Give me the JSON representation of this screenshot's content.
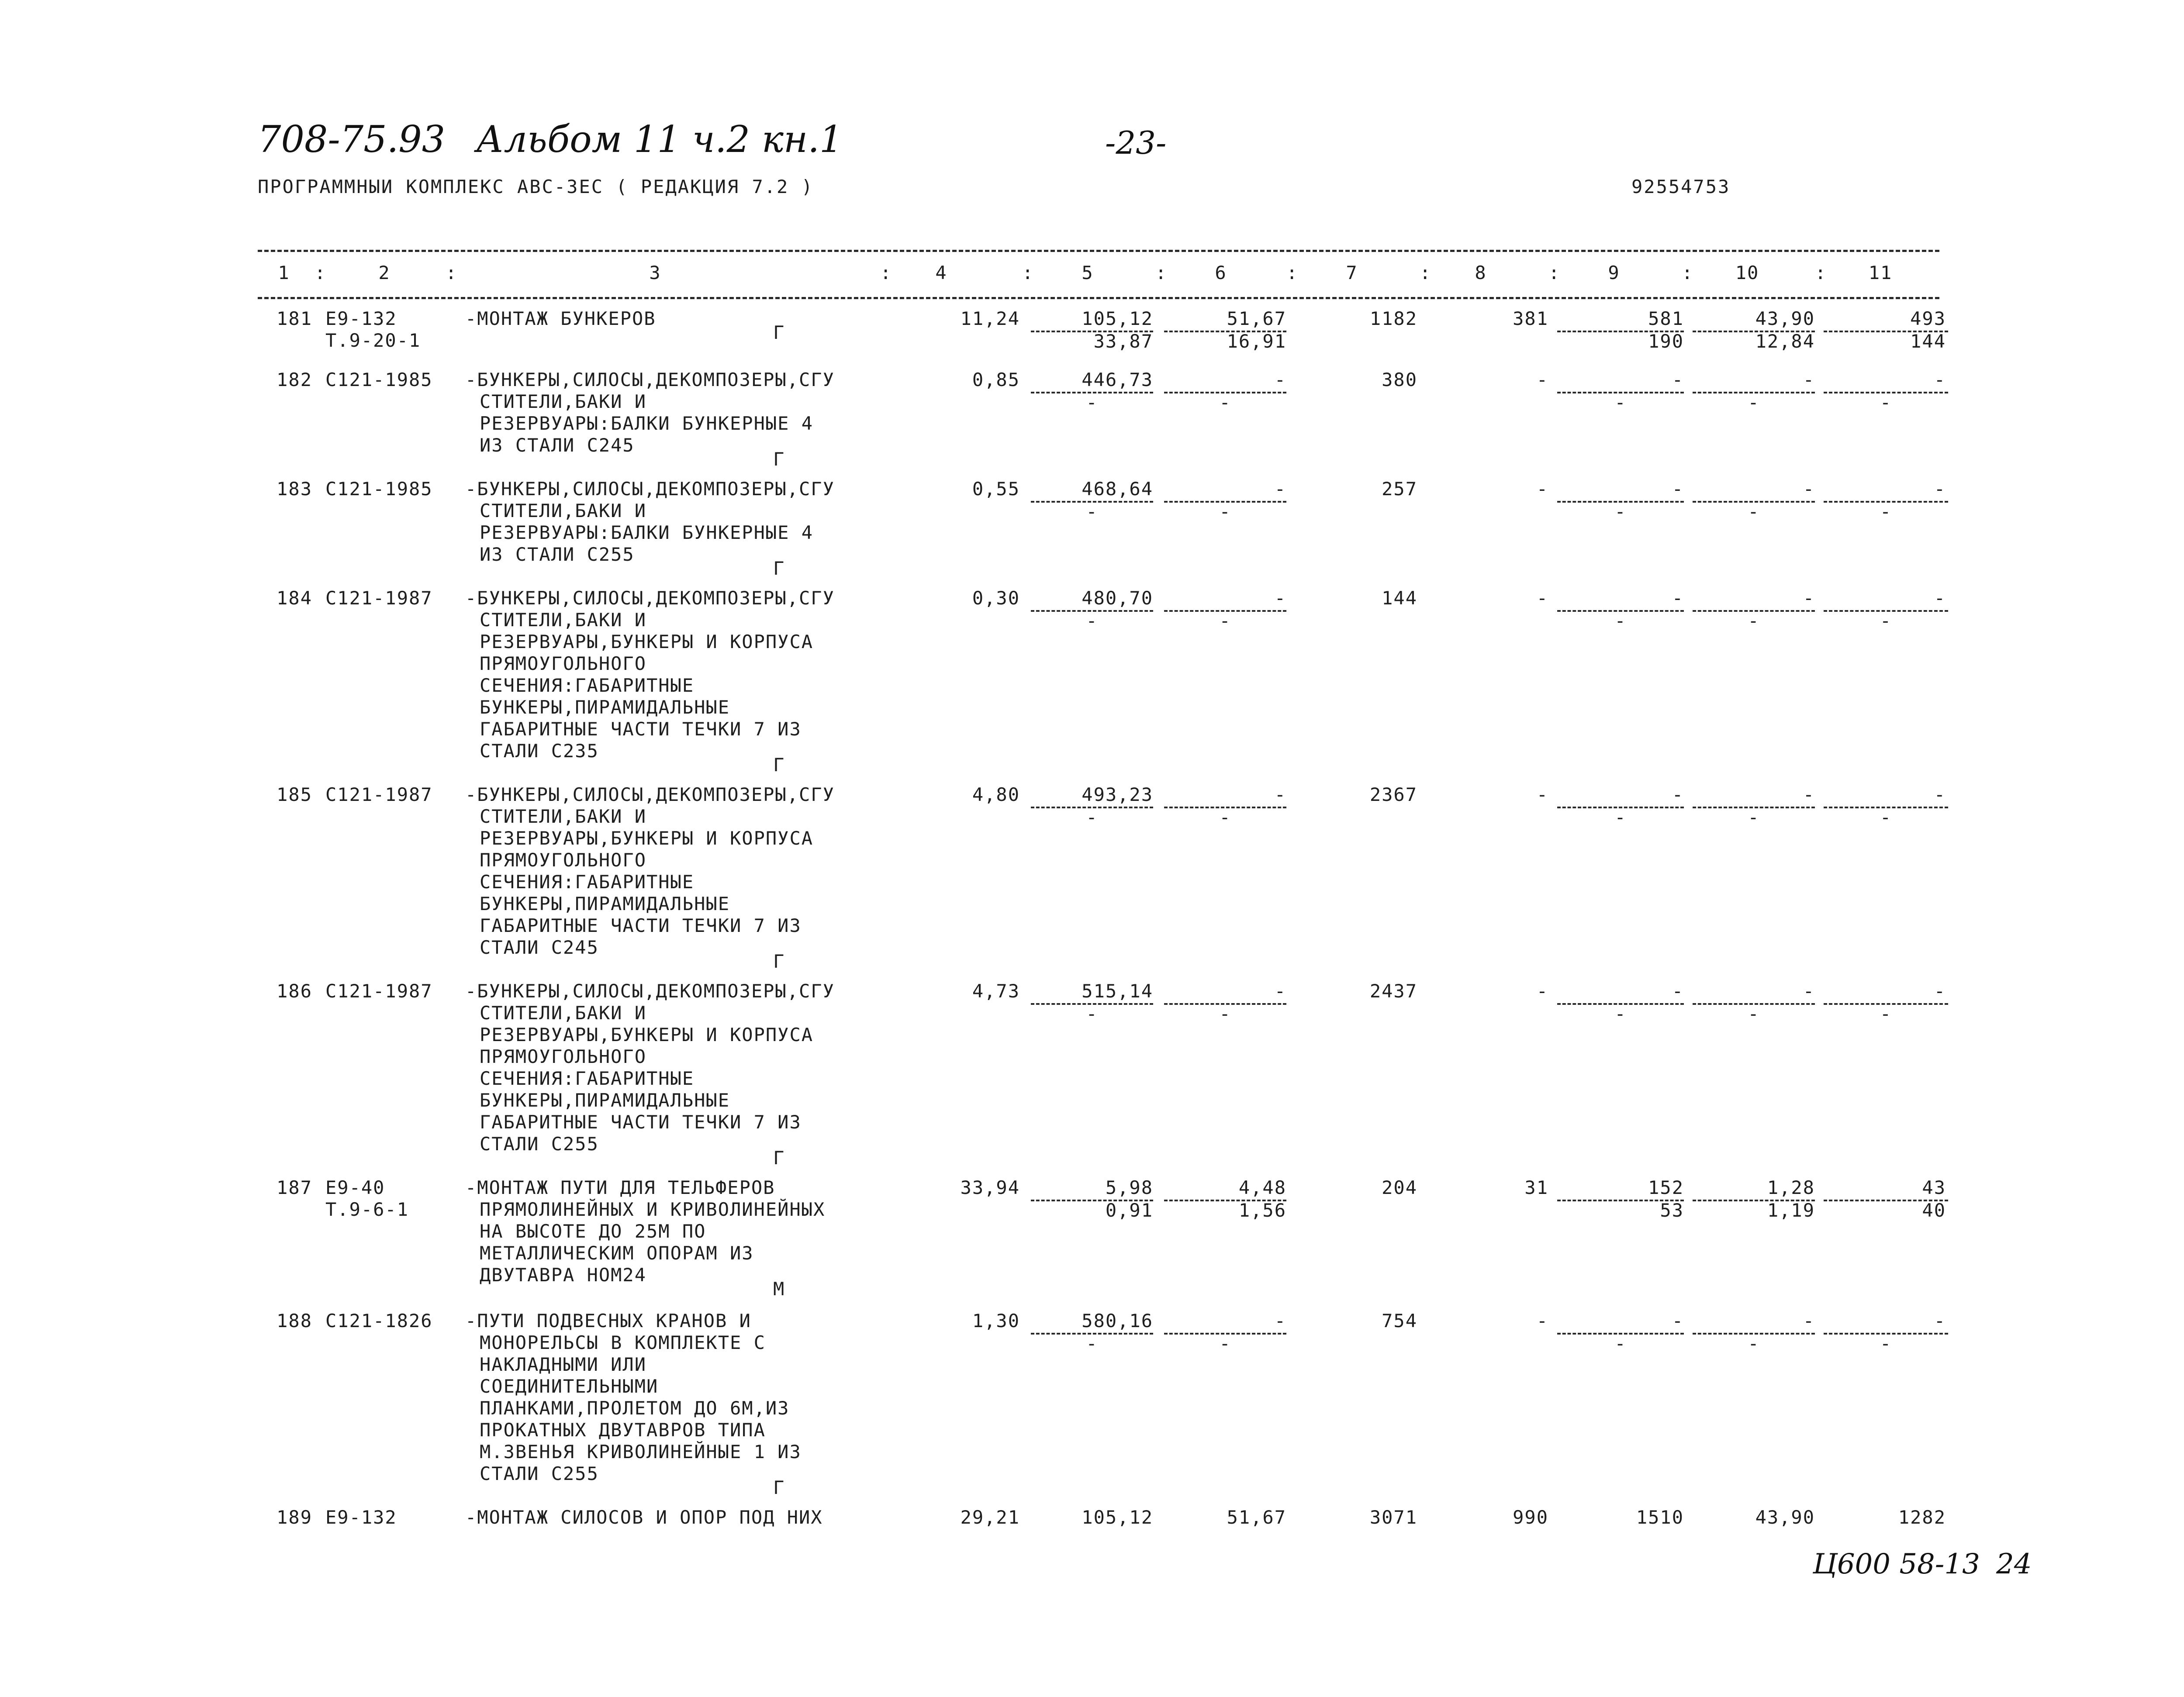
{
  "header": {
    "doc_code": "708-75.93",
    "album": "Альбом 11 ч.2 кн.1",
    "page": "-23-",
    "program": "ПРОГРАММНЫИ КОМПЛЕКС АВС-3ЕС   ( РЕДАКЦИЯ  7.2 )",
    "doc_number": "92554753"
  },
  "columns": [
    "1",
    "2",
    "3",
    "4",
    "5",
    "6",
    "7",
    "8",
    "9",
    "10",
    "11"
  ],
  "rows": [
    {
      "n": "181",
      "code": "Е9-132",
      "code2": "Т.9-20-1",
      "desc": [
        "-МОНТАЖ БУНКЕРОВ"
      ],
      "mark": "Г",
      "c4": "11,24",
      "c5": "105,12",
      "c6": "51,67",
      "c7": "1182",
      "c8": "381",
      "c9": "581",
      "c10": "43,90",
      "c11": "493",
      "s5": "33,87",
      "s6": "16,91",
      "s9": "190",
      "s10": "12,84",
      "s11": "144"
    },
    {
      "n": "182",
      "code": "С121-1985",
      "code2": "",
      "desc": [
        "-БУНКЕРЫ,СИЛОСЫ,ДЕКОМПОЗЕРЫ,СГУ",
        "СТИТЕЛИ,БАКИ И",
        "РЕЗЕРВУАРЫ:БАЛКИ БУНКЕРНЫЕ 4",
        "ИЗ СТАЛИ С245"
      ],
      "mark": "Г",
      "c4": "0,85",
      "c5": "446,73",
      "c6": "-",
      "c7": "380",
      "c8": "-",
      "c9": "-",
      "c10": "-",
      "c11": "-",
      "s5": "-",
      "s6": "-",
      "s9": "-",
      "s10": "-",
      "s11": "-"
    },
    {
      "n": "183",
      "code": "С121-1985",
      "code2": "",
      "desc": [
        "-БУНКЕРЫ,СИЛОСЫ,ДЕКОМПОЗЕРЫ,СГУ",
        "СТИТЕЛИ,БАКИ И",
        "РЕЗЕРВУАРЫ:БАЛКИ БУНКЕРНЫЕ 4",
        "ИЗ СТАЛИ С255"
      ],
      "mark": "Г",
      "c4": "0,55",
      "c5": "468,64",
      "c6": "-",
      "c7": "257",
      "c8": "-",
      "c9": "-",
      "c10": "-",
      "c11": "-",
      "s5": "-",
      "s6": "-",
      "s9": "-",
      "s10": "-",
      "s11": "-"
    },
    {
      "n": "184",
      "code": "С121-1987",
      "code2": "",
      "desc": [
        "-БУНКЕРЫ,СИЛОСЫ,ДЕКОМПОЗЕРЫ,СГУ",
        "СТИТЕЛИ,БАКИ И",
        "РЕЗЕРВУАРЫ,БУНКЕРЫ И КОРПУСА",
        "ПРЯМОУГОЛЬНОГО",
        "СЕЧЕНИЯ:ГАБАРИТНЫЕ",
        "БУНКЕРЫ,ПИРАМИДАЛЬНЫЕ",
        "ГАБАРИТНЫЕ ЧАСТИ ТЕЧКИ 7 ИЗ",
        "СТАЛИ С235"
      ],
      "mark": "Г",
      "c4": "0,30",
      "c5": "480,70",
      "c6": "-",
      "c7": "144",
      "c8": "-",
      "c9": "-",
      "c10": "-",
      "c11": "-",
      "s5": "-",
      "s6": "-",
      "s9": "-",
      "s10": "-",
      "s11": "-"
    },
    {
      "n": "185",
      "code": "С121-1987",
      "code2": "",
      "desc": [
        "-БУНКЕРЫ,СИЛОСЫ,ДЕКОМПОЗЕРЫ,СГУ",
        "СТИТЕЛИ,БАКИ И",
        "РЕЗЕРВУАРЫ,БУНКЕРЫ И КОРПУСА",
        "ПРЯМОУГОЛЬНОГО",
        "СЕЧЕНИЯ:ГАБАРИТНЫЕ",
        "БУНКЕРЫ,ПИРАМИДАЛЬНЫЕ",
        "ГАБАРИТНЫЕ ЧАСТИ ТЕЧКИ 7 ИЗ",
        "СТАЛИ С245"
      ],
      "mark": "Г",
      "c4": "4,80",
      "c5": "493,23",
      "c6": "-",
      "c7": "2367",
      "c8": "-",
      "c9": "-",
      "c10": "-",
      "c11": "-",
      "s5": "-",
      "s6": "-",
      "s9": "-",
      "s10": "-",
      "s11": "-"
    },
    {
      "n": "186",
      "code": "С121-1987",
      "code2": "",
      "desc": [
        "-БУНКЕРЫ,СИЛОСЫ,ДЕКОМПОЗЕРЫ,СГУ",
        "СТИТЕЛИ,БАКИ И",
        "РЕЗЕРВУАРЫ,БУНКЕРЫ И КОРПУСА",
        "ПРЯМОУГОЛЬНОГО",
        "СЕЧЕНИЯ:ГАБАРИТНЫЕ",
        "БУНКЕРЫ,ПИРАМИДАЛЬНЫЕ",
        "ГАБАРИТНЫЕ ЧАСТИ ТЕЧКИ 7 ИЗ",
        "СТАЛИ С255"
      ],
      "mark": "Г",
      "c4": "4,73",
      "c5": "515,14",
      "c6": "-",
      "c7": "2437",
      "c8": "-",
      "c9": "-",
      "c10": "-",
      "c11": "-",
      "s5": "-",
      "s6": "-",
      "s9": "-",
      "s10": "-",
      "s11": "-"
    },
    {
      "n": "187",
      "code": "Е9-40",
      "code2": "Т.9-6-1",
      "desc": [
        "-МОНТАЖ ПУТИ ДЛЯ ТЕЛЬФЕРОВ",
        "ПРЯМОЛИНЕЙНЫХ И КРИВОЛИНЕЙНЫХ",
        "НА ВЫСОТЕ ДО 25М ПО",
        "МЕТАЛЛИЧЕСКИМ ОПОРАМ ИЗ",
        "ДВУТАВРА НОМ24"
      ],
      "mark": "М",
      "c4": "33,94",
      "c5": "5,98",
      "c6": "4,48",
      "c7": "204",
      "c8": "31",
      "c9": "152",
      "c10": "1,28",
      "c11": "43",
      "s5": "0,91",
      "s6": "1,56",
      "s9": "53",
      "s10": "1,19",
      "s11": "40"
    },
    {
      "n": "188",
      "code": "С121-1826",
      "code2": "",
      "desc": [
        "-ПУТИ ПОДВЕСНЫХ КРАНОВ И",
        "МОНОРЕЛЬСЫ В КОМПЛЕКТЕ С",
        "НАКЛАДНЫМИ ИЛИ",
        "СОЕДИНИТЕЛЬНЫМИ",
        "ПЛАНКАМИ,ПРОЛЕТОМ ДО 6М,ИЗ",
        "ПРОКАТНЫХ ДВУТАВРОВ ТИПА",
        "М.ЗВЕНЬЯ КРИВОЛИНЕЙНЫЕ 1 ИЗ",
        "СТАЛИ С255"
      ],
      "mark": "Г",
      "c4": "1,30",
      "c5": "580,16",
      "c6": "-",
      "c7": "754",
      "c8": "-",
      "c9": "-",
      "c10": "-",
      "c11": "-",
      "s5": "-",
      "s6": "-",
      "s9": "-",
      "s10": "-",
      "s11": "-"
    },
    {
      "n": "189",
      "code": "Е9-132",
      "code2": "",
      "desc": [
        "-МОНТАЖ СИЛОСОВ И ОПОР ПОД НИХ"
      ],
      "mark": "",
      "c4": "29,21",
      "c5": "105,12",
      "c6": "51,67",
      "c7": "3071",
      "c8": "990",
      "c9": "1510",
      "c10": "43,90",
      "c11": "1282",
      "s5": null,
      "s6": null,
      "s9": null,
      "s10": null,
      "s11": null
    }
  ],
  "footer": {
    "stamp": "Ц600 58-13",
    "sheet": "24"
  }
}
